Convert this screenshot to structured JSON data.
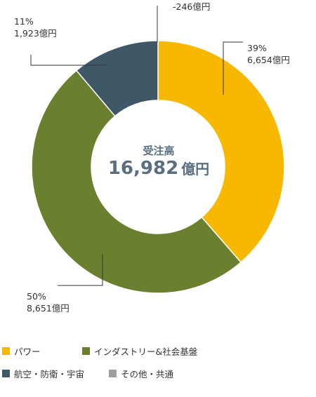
{
  "chart_data": {
    "type": "pie",
    "donut": true,
    "center": {
      "title": "受注高",
      "value": "16,982",
      "unit": "億円"
    },
    "slices": [
      {
        "name": "パワー",
        "value": 6654,
        "value_label": "6,654億円",
        "percent_label": "39%",
        "color": "#f9b800"
      },
      {
        "name": "インダストリー&社会基盤",
        "value": 8651,
        "value_label": "8,651億円",
        "percent_label": "50%",
        "color": "#6a802e"
      },
      {
        "name": "航空・防衛・宇宙",
        "value": 1923,
        "value_label": "1,923億円",
        "percent_label": "11%",
        "color": "#3f5868"
      }
    ],
    "other": {
      "name": "その他・共通",
      "value": -246,
      "value_label": "-246億円",
      "color": "#9e9e9e"
    },
    "legend": [
      {
        "name": "パワー",
        "color": "#f9b800"
      },
      {
        "name": "インダストリー&社会基盤",
        "color": "#6a802e"
      },
      {
        "name": "航空・防衛・宇宙",
        "color": "#3f5868"
      },
      {
        "name": "その他・共通",
        "color": "#9e9e9e"
      }
    ]
  }
}
